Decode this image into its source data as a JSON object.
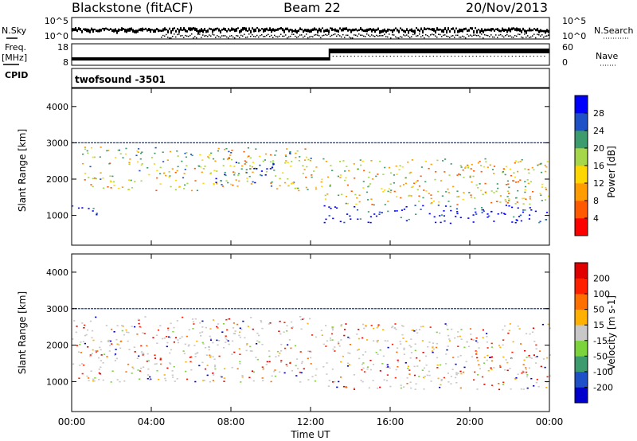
{
  "header": {
    "station": "Blackstone (fitACF)",
    "beam": "Beam 22",
    "date": "20/Nov/2013"
  },
  "noise_panel": {
    "left_label": "N.Sky",
    "right_label": "N.Search",
    "left_ticks": [
      "10^5",
      "10^0"
    ],
    "right_ticks": [
      "10^5",
      "10^0"
    ]
  },
  "freq_panel": {
    "left_label_1": "Freq.",
    "left_label_2": "[MHz]",
    "left_ticks": [
      "18",
      "8"
    ],
    "right_label": "Nave",
    "right_ticks": [
      "60",
      "0"
    ],
    "cpid_label": "CPID",
    "cpid_value": "twofsound  -3501"
  },
  "chart_data": [
    {
      "type": "heatmap",
      "title": "",
      "quantity": "Power",
      "ylabel": "Slant Range [km]",
      "xlabel": "Time UT",
      "ylim": [
        180,
        4500
      ],
      "y_ticks": [
        "1000",
        "2000",
        "3000",
        "4000"
      ],
      "x_ticks": [
        "00:00",
        "04:00",
        "08:00",
        "12:00",
        "16:00",
        "20:00",
        "00:00"
      ],
      "colorbar": {
        "label": "Power [dB]",
        "ticks": [
          "28",
          "24",
          "20",
          "16",
          "12",
          "8",
          "4"
        ],
        "colors": [
          "#ff0000",
          "#ff5a00",
          "#ff9c00",
          "#ffd700",
          "#a6d64a",
          "#3c9c6e",
          "#1e50c8",
          "#0000ff"
        ]
      },
      "bands": [
        {
          "t0": 0,
          "t1": 1.5,
          "r0": 1000,
          "r1": 1300,
          "level": 0.92
        },
        {
          "t0": 0.5,
          "t1": 12.3,
          "r0": 1700,
          "r1": 2900,
          "level": 0.5
        },
        {
          "t0": 7.2,
          "t1": 10.2,
          "r0": 1900,
          "r1": 2500,
          "level": 0.85
        },
        {
          "t0": 12.5,
          "t1": 24,
          "r0": 800,
          "r1": 1300,
          "level": 0.95
        },
        {
          "t0": 12.5,
          "t1": 24,
          "r0": 1300,
          "r1": 2600,
          "level": 0.45
        }
      ]
    },
    {
      "type": "heatmap",
      "title": "",
      "quantity": "Velocity",
      "ylabel": "Slant Range [km]",
      "xlabel": "Time UT",
      "ylim": [
        180,
        4500
      ],
      "y_ticks": [
        "1000",
        "2000",
        "3000",
        "4000"
      ],
      "x_ticks": [
        "00:00",
        "04:00",
        "08:00",
        "12:00",
        "16:00",
        "20:00",
        "00:00"
      ],
      "colorbar": {
        "label": "Velocity [m s-1]",
        "ticks": [
          "200",
          "100",
          "50",
          "15",
          "-15",
          "-50",
          "-100",
          "-200"
        ],
        "colors": [
          "#0000cc",
          "#1e50c8",
          "#3c9c6e",
          "#7cd43c",
          "#c8c8c8",
          "#ffb000",
          "#ff7000",
          "#ff2000",
          "#e00000"
        ]
      },
      "bands": [
        {
          "t0": 0,
          "t1": 12.3,
          "r0": 1000,
          "r1": 2800,
          "level": 0.5
        },
        {
          "t0": 12.5,
          "t1": 24,
          "r0": 800,
          "r1": 1400,
          "level": 0.5
        },
        {
          "t0": 12.5,
          "t1": 24,
          "r0": 1400,
          "r1": 2600,
          "level": 0.5
        }
      ]
    }
  ]
}
